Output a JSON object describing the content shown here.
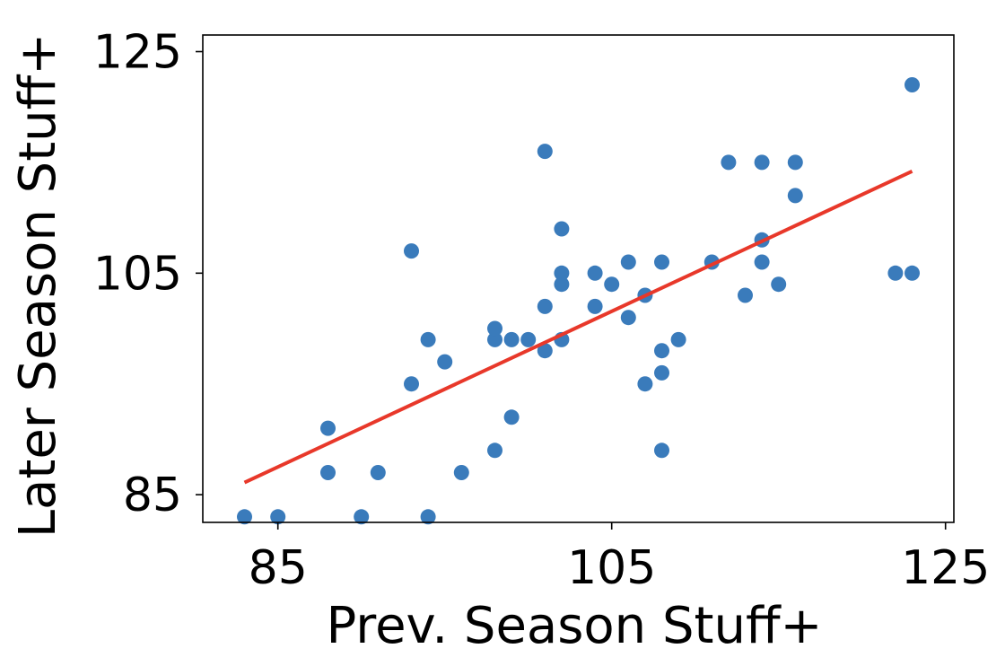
{
  "chart_data": {
    "type": "scatter",
    "xlabel": "Prev. Season Stuff+",
    "ylabel": "Later Season Stuff+",
    "xlim": [
      80.5,
      125.5
    ],
    "ylim": [
      82.5,
      126.5
    ],
    "xticks": [
      "85",
      "105",
      "125"
    ],
    "yticks": [
      "85",
      "105",
      "125"
    ],
    "xtick_values": [
      85,
      105,
      125
    ],
    "ytick_values": [
      85,
      105,
      125
    ],
    "grid": false,
    "colors": {
      "points": "#3a7bbb",
      "fit_line": "#e8382a",
      "axes": "#000000"
    },
    "points": [
      {
        "x": 83,
        "y": 83
      },
      {
        "x": 85,
        "y": 83
      },
      {
        "x": 88,
        "y": 87
      },
      {
        "x": 88,
        "y": 91
      },
      {
        "x": 90,
        "y": 83
      },
      {
        "x": 91,
        "y": 87
      },
      {
        "x": 93,
        "y": 95
      },
      {
        "x": 93,
        "y": 107
      },
      {
        "x": 94,
        "y": 99
      },
      {
        "x": 94,
        "y": 83
      },
      {
        "x": 95,
        "y": 97
      },
      {
        "x": 96,
        "y": 87
      },
      {
        "x": 98,
        "y": 89
      },
      {
        "x": 98,
        "y": 99
      },
      {
        "x": 98,
        "y": 100
      },
      {
        "x": 99,
        "y": 99
      },
      {
        "x": 99,
        "y": 92
      },
      {
        "x": 100,
        "y": 99
      },
      {
        "x": 101,
        "y": 98
      },
      {
        "x": 101,
        "y": 102
      },
      {
        "x": 101,
        "y": 116
      },
      {
        "x": 102,
        "y": 99
      },
      {
        "x": 102,
        "y": 104
      },
      {
        "x": 102,
        "y": 105
      },
      {
        "x": 102,
        "y": 109
      },
      {
        "x": 104,
        "y": 102
      },
      {
        "x": 104,
        "y": 105
      },
      {
        "x": 105,
        "y": 104
      },
      {
        "x": 106,
        "y": 101
      },
      {
        "x": 106,
        "y": 106
      },
      {
        "x": 107,
        "y": 103
      },
      {
        "x": 107,
        "y": 95
      },
      {
        "x": 108,
        "y": 89
      },
      {
        "x": 108,
        "y": 96
      },
      {
        "x": 108,
        "y": 98
      },
      {
        "x": 108,
        "y": 106
      },
      {
        "x": 109,
        "y": 99
      },
      {
        "x": 111,
        "y": 106
      },
      {
        "x": 112,
        "y": 115
      },
      {
        "x": 113,
        "y": 103
      },
      {
        "x": 114,
        "y": 106
      },
      {
        "x": 114,
        "y": 108
      },
      {
        "x": 114,
        "y": 115
      },
      {
        "x": 115,
        "y": 104
      },
      {
        "x": 116,
        "y": 112
      },
      {
        "x": 116,
        "y": 115
      },
      {
        "x": 122,
        "y": 105
      },
      {
        "x": 123,
        "y": 105
      },
      {
        "x": 123,
        "y": 122
      }
    ],
    "fit_line": {
      "x": [
        83,
        123
      ],
      "y": [
        86.1,
        114.2
      ]
    }
  }
}
